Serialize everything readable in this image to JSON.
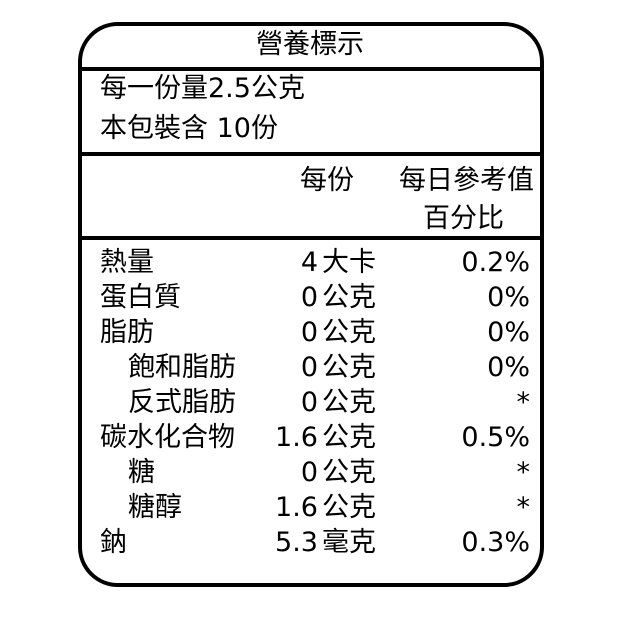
{
  "title": "營養標示",
  "serving": {
    "size": "每一份量2.5公克",
    "count": "本包裝含 10份"
  },
  "header": {
    "per_serving": "每份",
    "daily_value_line1": "每日參考值",
    "daily_value_line2": "百分比"
  },
  "rows": [
    {
      "name": "熱量",
      "amount": "4",
      "unit": "大卡",
      "dv": "0.2%",
      "indent": false
    },
    {
      "name": "蛋白質",
      "amount": "0",
      "unit": "公克",
      "dv": "0%",
      "indent": false
    },
    {
      "name": "脂肪",
      "amount": "0",
      "unit": "公克",
      "dv": "0%",
      "indent": false
    },
    {
      "name": "飽和脂肪",
      "amount": "0",
      "unit": "公克",
      "dv": "0%",
      "indent": true
    },
    {
      "name": "反式脂肪",
      "amount": "0",
      "unit": "公克",
      "dv": "*",
      "indent": true
    },
    {
      "name": "碳水化合物",
      "amount": "1.6",
      "unit": "公克",
      "dv": "0.5%",
      "indent": false
    },
    {
      "name": "糖",
      "amount": "0",
      "unit": "公克",
      "dv": "*",
      "indent": true
    },
    {
      "name": "糖醇",
      "amount": "1.6",
      "unit": "公克",
      "dv": "*",
      "indent": true
    },
    {
      "name": "鈉",
      "amount": "5.3",
      "unit": "毫克",
      "dv": "0.3%",
      "indent": false
    }
  ]
}
